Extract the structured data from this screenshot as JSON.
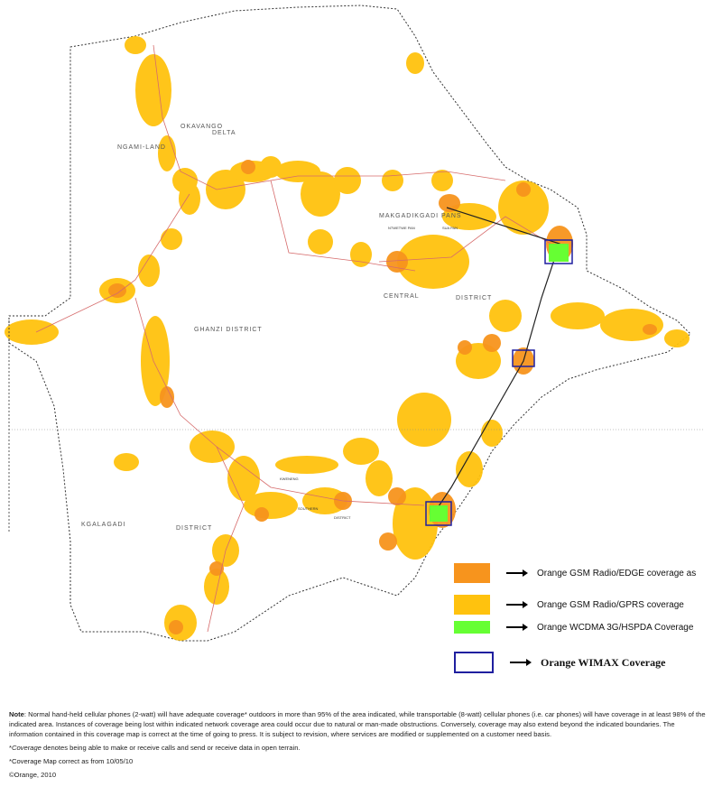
{
  "map": {
    "districts": [
      {
        "id": "okavango",
        "label": "OKAVANGO"
      },
      {
        "id": "delta",
        "label": "DELTA"
      },
      {
        "id": "ngamiland",
        "label": "NGAMI-LAND"
      },
      {
        "id": "ghanzi",
        "label": "GHANZI      DISTRICT"
      },
      {
        "id": "central",
        "label": "CENTRAL"
      },
      {
        "id": "district-c",
        "label": "DISTRICT"
      },
      {
        "id": "makgadikgadi",
        "label": "MAKGADIKGADI PANS"
      },
      {
        "id": "ntwetwe",
        "label": "NTWETWE PAN"
      },
      {
        "id": "sua",
        "label": "SUA PAN"
      },
      {
        "id": "kgalagadi",
        "label": "KGALAGADI"
      },
      {
        "id": "district-k",
        "label": "DISTRICT"
      },
      {
        "id": "southern",
        "label": "SOUTHERN"
      },
      {
        "id": "kweneng",
        "label": "KWENENG"
      },
      {
        "id": "district-s",
        "label": "DISTRICT"
      }
    ],
    "colors": {
      "edge": "#F7941D",
      "gprs": "#FFC20E",
      "wcdma": "#66FF33",
      "wimax": "#1F1F9F",
      "road": "#D66B6B",
      "border": "#333333"
    }
  },
  "legend": [
    {
      "id": "edge",
      "label": "Orange GSM Radio/EDGE coverage as",
      "color": "#F7941D"
    },
    {
      "id": "gprs",
      "label": "Orange GSM  Radio/GPRS coverage",
      "color": "#FFC20E"
    },
    {
      "id": "wcdma",
      "label": "Orange WCDMA 3G/HSPDA Coverage",
      "color": "#66FF33"
    },
    {
      "id": "wimax",
      "label": "Orange WIMAX Coverage",
      "color": "#1F1F9F"
    }
  ],
  "notes": {
    "note_label": "Note",
    "note_text": ": Normal hand-held cellular phones (2-watt) will have adequate coverage* outdoors in more than 95% of the area indicated, while transportable (8-watt) cellular phones (i.e. car phones) will have coverage in at least 98% of the indicated area.  Instances of coverage being lost within indicated network coverage area could occur due to natural or man-made obstructions.  Conversely, coverage may also extend beyond the indicated boundaries.  The information contained in this coverage map is correct at the time of going to press.  It is subject to revision, where services are modified or supplemented on a customer need basis.",
    "coverage_def_prefix": "*",
    "coverage_def_word": "Coverage",
    "coverage_def_text": " denotes being able to make or receive calls and send or receive data in open terrain.",
    "date_text": "*Coverage Map correct as from  10/05/10",
    "copyright": "©Orange, 2010"
  }
}
